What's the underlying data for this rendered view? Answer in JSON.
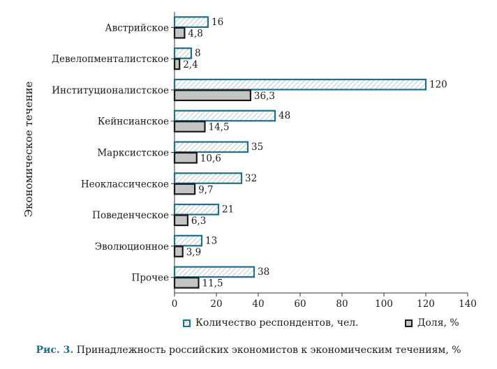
{
  "chart_data": {
    "type": "bar",
    "orientation": "horizontal",
    "categories": [
      "Австрийское",
      "Девелопменталистское",
      "Институционалистское",
      "Кейнсианское",
      "Марксистское",
      "Неоклассическое",
      "Поведенческое",
      "Эволюционное",
      "Прочее"
    ],
    "series": [
      {
        "name": "Количество респондентов, чел.",
        "values": [
          16,
          8,
          120,
          48,
          35,
          32,
          21,
          13,
          38
        ],
        "labels": [
          "16",
          "8",
          "120",
          "48",
          "35",
          "32",
          "21",
          "13",
          "38"
        ],
        "color": "#1f6f8b",
        "fill": "hatched"
      },
      {
        "name": "Доля, %",
        "values": [
          4.8,
          2.4,
          36.3,
          14.5,
          10.6,
          9.7,
          6.3,
          3.9,
          11.5
        ],
        "labels": [
          "4,8",
          "2,4",
          "36,3",
          "14,5",
          "10,6",
          "9,7",
          "6,3",
          "3,9",
          "11,5"
        ],
        "color": "#1a1a1a",
        "fill": "#c4c4c4"
      }
    ],
    "ylabel": "Экономическое течение",
    "xlabel": "",
    "xlim": [
      0,
      140
    ],
    "xticks": [
      0,
      20,
      40,
      60,
      80,
      100,
      120,
      140
    ],
    "grid": false,
    "legend_position": "bottom"
  },
  "caption": {
    "prefix": "Рис. 3.",
    "text": " Принадлежность российских экономистов к экономическим течениям, %"
  }
}
